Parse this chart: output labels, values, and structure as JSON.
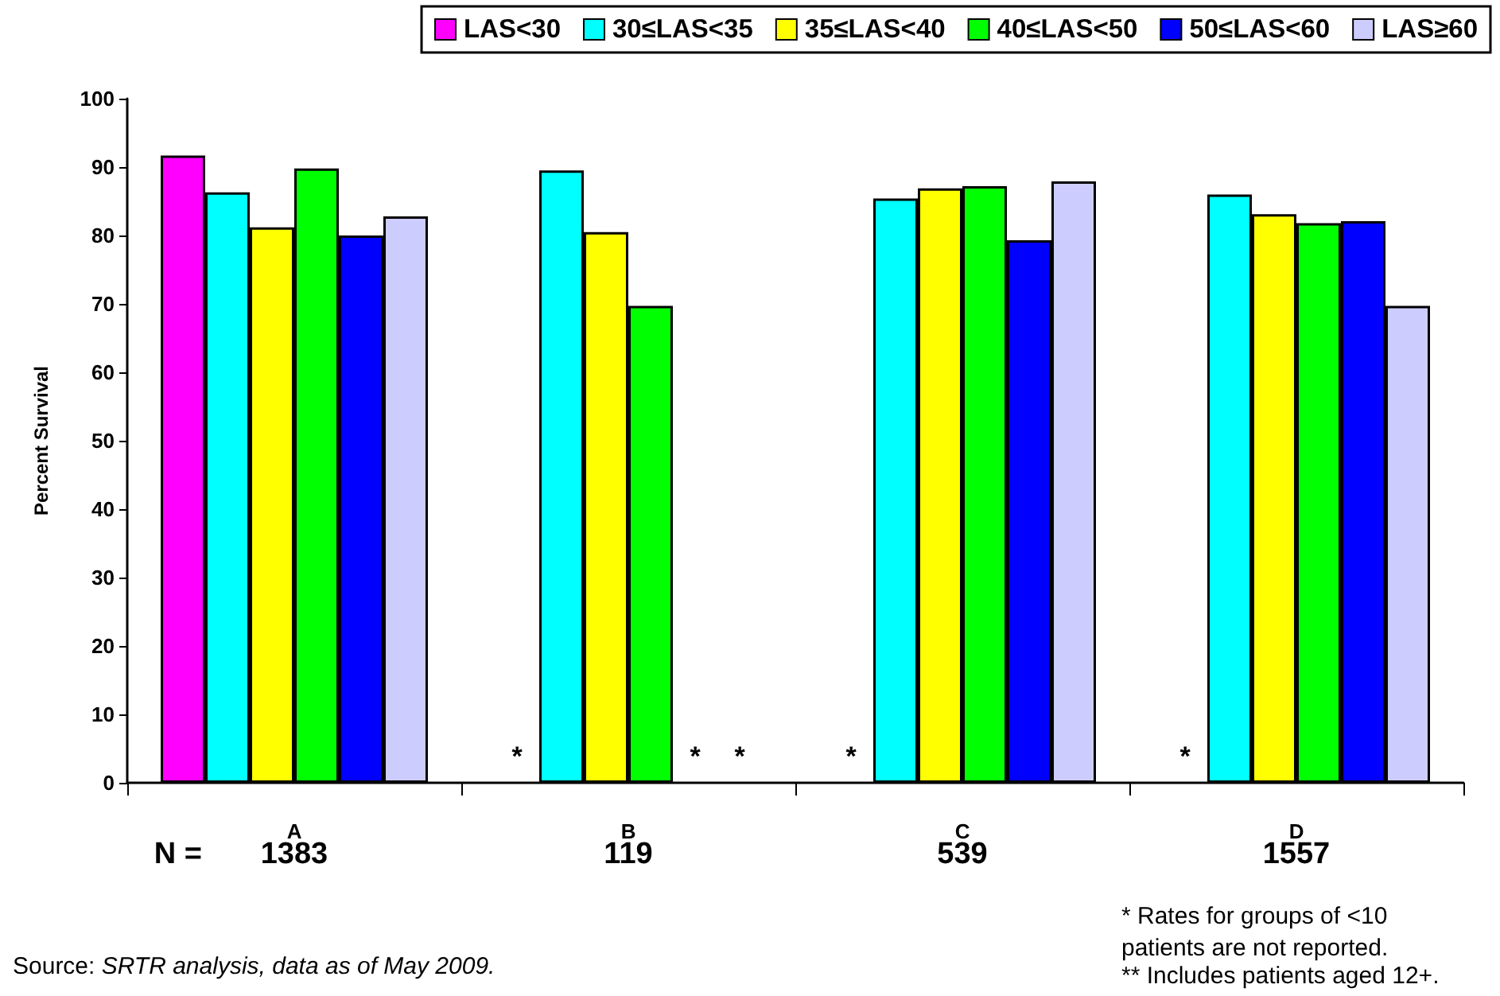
{
  "chart_data": {
    "type": "bar",
    "ylabel": "Percent Survival",
    "categories": [
      "A",
      "B",
      "C",
      "D"
    ],
    "series": [
      {
        "name": "LAS<30",
        "color": "#ff00ff",
        "values": [
          91.7,
          null,
          null,
          null
        ],
        "value_labels": [
          null,
          "*",
          "*",
          "*"
        ]
      },
      {
        "name": "30≤LAS<35",
        "color": "#00ffff",
        "values": [
          86.3,
          89.5,
          85.4,
          86
        ]
      },
      {
        "name": "35≤LAS<40",
        "color": "#ffff00",
        "values": [
          81.2,
          80.5,
          86.9,
          83.1
        ]
      },
      {
        "name": "40≤LAS<50",
        "color": "#00ff00",
        "values": [
          89.8,
          69.7,
          87.2,
          81.8
        ]
      },
      {
        "name": "50≤LAS<60",
        "color": "#0000ff",
        "values": [
          80,
          null,
          79.3,
          82.1
        ],
        "value_labels": [
          null,
          "*",
          null,
          null
        ]
      },
      {
        "name": "LAS≥60",
        "color": "#ccccff",
        "values": [
          82.8,
          null,
          87.9,
          69.7
        ],
        "value_labels": [
          null,
          "*",
          null,
          null
        ]
      }
    ],
    "ylim": [
      0,
      100
    ],
    "yticks": [
      0,
      10,
      20,
      30,
      40,
      50,
      60,
      70,
      80,
      90,
      100
    ],
    "grid": false,
    "legend": "top",
    "annotations": [
      "N =",
      "1383",
      "119",
      "539",
      "1557",
      "Source: SRTR analysis, data as of May 2009.",
      "* Rates for groups of <10\npatients are not reported.",
      "** Includes patients aged 12+."
    ]
  }
}
